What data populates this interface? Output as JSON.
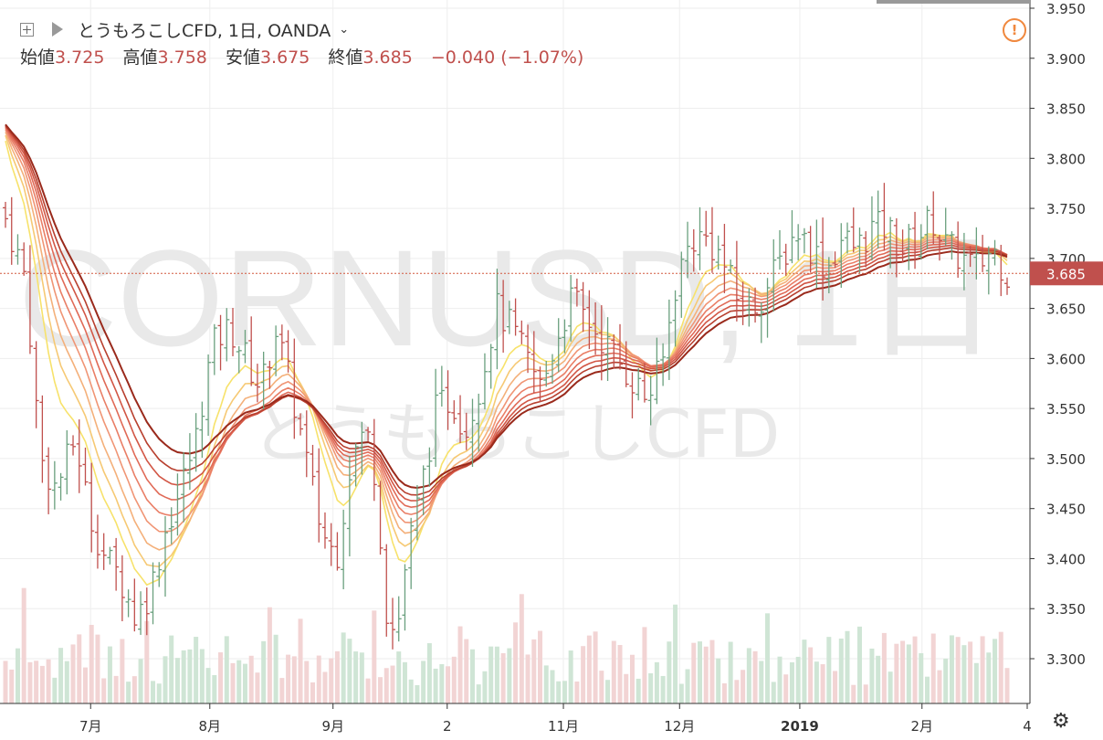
{
  "header": {
    "symbol_title": "とうもろこしCFD, 1日, OANDA",
    "ohlc": [
      {
        "label": "始値",
        "value": "3.725"
      },
      {
        "label": "高値",
        "value": "3.758"
      },
      {
        "label": "安値",
        "value": "3.675"
      },
      {
        "label": "終値",
        "value": "3.685"
      }
    ],
    "change": "−0.040 (−1.07%)"
  },
  "watermark": {
    "line1": "CORNUSD, 1日",
    "line2": "とうもろこしCFD"
  },
  "price_tag": "3.685",
  "colors": {
    "up": "#6aa07e",
    "down": "#c0504d",
    "vol_up": "#cfe5d5",
    "vol_down": "#f2d4d4",
    "price_line": "#d2593f",
    "ribbon": [
      "#f7e26b",
      "#f6c974",
      "#f4b07a",
      "#f09575",
      "#e97e66",
      "#e06a57",
      "#d25645",
      "#b8402f",
      "#9a2a1c"
    ]
  },
  "icons": [
    "add-icon",
    "flag-icon",
    "chevron-down-icon",
    "alert-icon",
    "gear-icon"
  ],
  "chart_data": {
    "type": "ohlc",
    "y_ticks": [
      "3.950",
      "3.900",
      "3.850",
      "3.800",
      "3.750",
      "3.700",
      "3.650",
      "3.600",
      "3.550",
      "3.500",
      "3.450",
      "3.400",
      "3.350",
      "3.300"
    ],
    "ylim": [
      3.26,
      3.96
    ],
    "x_ticks": [
      {
        "label": "7月",
        "t": 0.085
      },
      {
        "label": "8月",
        "t": 0.204
      },
      {
        "label": "9月",
        "t": 0.327
      },
      {
        "label": "2",
        "t": 0.441
      },
      {
        "label": "11月",
        "t": 0.557
      },
      {
        "label": "12月",
        "t": 0.673
      },
      {
        "label": "2019",
        "t": 0.793
      },
      {
        "label": "2月",
        "t": 0.915
      },
      {
        "label": "4",
        "t": 1.0
      }
    ],
    "close_path": [
      [
        0,
        3.74
      ],
      [
        0.02,
        3.68
      ],
      [
        0.035,
        3.5
      ],
      [
        0.05,
        3.47
      ],
      [
        0.07,
        3.52
      ],
      [
        0.085,
        3.44
      ],
      [
        0.1,
        3.4
      ],
      [
        0.115,
        3.38
      ],
      [
        0.13,
        3.34
      ],
      [
        0.145,
        3.37
      ],
      [
        0.16,
        3.43
      ],
      [
        0.175,
        3.47
      ],
      [
        0.19,
        3.52
      ],
      [
        0.2,
        3.58
      ],
      [
        0.21,
        3.62
      ],
      [
        0.225,
        3.63
      ],
      [
        0.24,
        3.6
      ],
      [
        0.255,
        3.57
      ],
      [
        0.27,
        3.63
      ],
      [
        0.285,
        3.57
      ],
      [
        0.3,
        3.5
      ],
      [
        0.315,
        3.43
      ],
      [
        0.33,
        3.4
      ],
      [
        0.345,
        3.5
      ],
      [
        0.36,
        3.53
      ],
      [
        0.37,
        3.48
      ],
      [
        0.38,
        3.35
      ],
      [
        0.39,
        3.32
      ],
      [
        0.4,
        3.4
      ],
      [
        0.415,
        3.47
      ],
      [
        0.43,
        3.55
      ],
      [
        0.445,
        3.56
      ],
      [
        0.46,
        3.53
      ],
      [
        0.475,
        3.58
      ],
      [
        0.49,
        3.65
      ],
      [
        0.505,
        3.63
      ],
      [
        0.52,
        3.6
      ],
      [
        0.535,
        3.57
      ],
      [
        0.55,
        3.62
      ],
      [
        0.565,
        3.66
      ],
      [
        0.58,
        3.64
      ],
      [
        0.595,
        3.62
      ],
      [
        0.61,
        3.6
      ],
      [
        0.625,
        3.58
      ],
      [
        0.64,
        3.56
      ],
      [
        0.655,
        3.59
      ],
      [
        0.67,
        3.68
      ],
      [
        0.685,
        3.72
      ],
      [
        0.7,
        3.72
      ],
      [
        0.715,
        3.7
      ],
      [
        0.73,
        3.66
      ],
      [
        0.745,
        3.65
      ],
      [
        0.76,
        3.67
      ],
      [
        0.775,
        3.7
      ],
      [
        0.79,
        3.73
      ],
      [
        0.805,
        3.71
      ],
      [
        0.82,
        3.69
      ],
      [
        0.835,
        3.72
      ],
      [
        0.85,
        3.71
      ],
      [
        0.865,
        3.73
      ],
      [
        0.88,
        3.73
      ],
      [
        0.895,
        3.71
      ],
      [
        0.91,
        3.72
      ],
      [
        0.925,
        3.74
      ],
      [
        0.94,
        3.71
      ],
      [
        0.955,
        3.7
      ],
      [
        0.97,
        3.69
      ],
      [
        0.985,
        3.71
      ],
      [
        1.0,
        3.685
      ]
    ],
    "ribbon_count": 9
  }
}
